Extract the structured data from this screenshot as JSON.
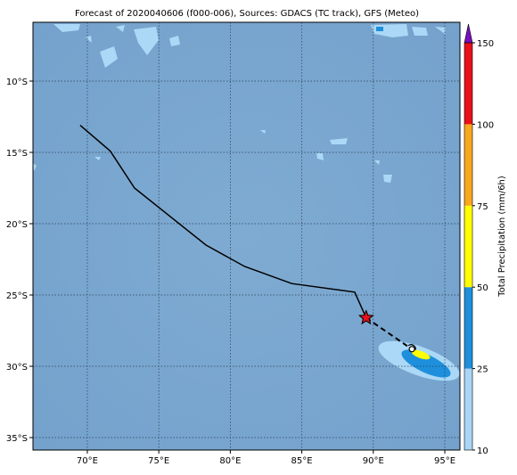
{
  "map": {
    "title": "Forecast of 2020040606 (f000-006), Sources: GDACS (TC track), GFS (Meteo)",
    "xlim": [
      66.2,
      96.06
    ],
    "ylim": [
      -35.875,
      -5.875
    ],
    "xticks": [
      {
        "value": 70,
        "label": "70°E"
      },
      {
        "value": 75,
        "label": "75°E"
      },
      {
        "value": 80,
        "label": "80°E"
      },
      {
        "value": 85,
        "label": "85°E"
      },
      {
        "value": 90,
        "label": "90°E"
      },
      {
        "value": 95,
        "label": "95°E"
      }
    ],
    "yticks": [
      {
        "value": -10,
        "label": "10°S"
      },
      {
        "value": -15,
        "label": "15°S"
      },
      {
        "value": -20,
        "label": "20°S"
      },
      {
        "value": -25,
        "label": "25°S"
      },
      {
        "value": -30,
        "label": "30°S"
      },
      {
        "value": -35,
        "label": "35°S"
      }
    ],
    "track": {
      "lon": [
        69.5,
        71.6,
        73.3,
        78.3,
        81.0,
        84.3,
        88.7,
        89.5
      ],
      "lat": [
        -13.1,
        -14.9,
        -17.5,
        -21.5,
        -23.0,
        -24.2,
        -24.8,
        -26.6
      ]
    },
    "forecast_track": {
      "lon": [
        89.5,
        92.7
      ],
      "lat": [
        -26.6,
        -28.8
      ]
    },
    "colorbar": {
      "label": "Total Precipitation (mm/6h)",
      "ticks": [
        10,
        25,
        50,
        75,
        100,
        150
      ],
      "colors": [
        "#a9d6f5",
        "#1e8fdc",
        "#ffff00",
        "#f8a81c",
        "#e8101a"
      ],
      "extend_color": "#7a0fc0"
    }
  }
}
